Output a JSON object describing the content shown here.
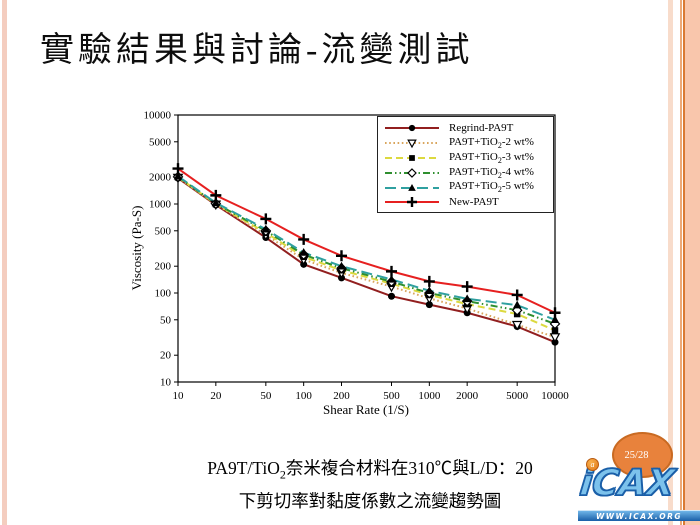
{
  "slide": {
    "title": "實驗結果與討論-流變測試",
    "page_badge": "25/28",
    "caption": {
      "line1_pre": "PA9T/TiO",
      "line1_sub": "2",
      "line1_post": "奈米複合材料在310℃與L/D：20",
      "line2": "下剪切率對黏度係數之流變趨勢圖"
    },
    "logo": {
      "wordmark": "iCAX",
      "dot_letter": "a",
      "banner": "WWW.ICAX.ORG"
    },
    "colors": {
      "badge_fill": "#e8823c",
      "badge_border": "#c96a22",
      "stripe_band": "#f9c6ac",
      "logo_blue": "#7cc2ec",
      "logo_outline": "#1a5fa8"
    }
  },
  "chart_data": {
    "type": "line",
    "x_scale": "log",
    "y_scale": "log",
    "xlabel": "Shear Rate (1/S)",
    "ylabel": "Viscosity (Pa-S)",
    "xlim": [
      10,
      10000
    ],
    "ylim": [
      10,
      10000
    ],
    "x_ticks": [
      10,
      20,
      50,
      100,
      200,
      500,
      1000,
      2000,
      5000,
      10000
    ],
    "y_ticks": [
      10,
      20,
      50,
      100,
      200,
      500,
      1000,
      2000,
      5000,
      10000
    ],
    "grid": false,
    "legend_position": "top-right",
    "x": [
      10,
      20,
      50,
      100,
      200,
      500,
      1000,
      2000,
      5000,
      10000
    ],
    "series": [
      {
        "name": "Regrind-PA9T",
        "name_pre": "Regrind-PA9T",
        "name_sub": "",
        "name_post": "",
        "color": "#921f1f",
        "dash": "solid",
        "marker": "circle-filled",
        "values": [
          1950,
          975,
          420,
          210,
          148,
          92,
          74,
          60,
          42,
          28
        ]
      },
      {
        "name": "PA9T+TiO2-2 wt%",
        "name_pre": "PA9T+TiO",
        "name_sub": "2",
        "name_post": "-2 wt%",
        "color": "#d9a55c",
        "dash": "dotted",
        "marker": "triangle-down-open",
        "values": [
          1980,
          990,
          450,
          238,
          168,
          118,
          87,
          67,
          44,
          32
        ]
      },
      {
        "name": "PA9T+TiO2-3 wt%",
        "name_pre": "PA9T+TiO",
        "name_sub": "2",
        "name_post": "-3 wt%",
        "color": "#dcd93f",
        "dash": "dashed",
        "marker": "square-filled",
        "values": [
          2000,
          1000,
          475,
          255,
          180,
          127,
          95,
          75,
          58,
          38
        ]
      },
      {
        "name": "PA9T+TiO2-4 wt%",
        "name_pre": "PA9T+TiO",
        "name_sub": "2",
        "name_post": "-4 wt%",
        "color": "#2f8f2f",
        "dash": "dash-dot-dot",
        "marker": "diamond-open",
        "values": [
          2020,
          1010,
          500,
          270,
          190,
          134,
          100,
          81,
          64,
          45
        ]
      },
      {
        "name": "PA9T+TiO2-5 wt%",
        "name_pre": "PA9T+TiO",
        "name_sub": "2",
        "name_post": "-5 wt%",
        "color": "#2fa0a0",
        "dash": "long-dash",
        "marker": "triangle-up-filled",
        "values": [
          2050,
          1030,
          520,
          285,
          200,
          142,
          106,
          86,
          73,
          50
        ]
      },
      {
        "name": "New-PA9T",
        "name_pre": "New-PA9T",
        "name_sub": "",
        "name_post": "",
        "color": "#e62020",
        "dash": "solid",
        "marker": "plus",
        "values": [
          2500,
          1250,
          680,
          400,
          262,
          175,
          135,
          118,
          95,
          60
        ]
      }
    ]
  }
}
